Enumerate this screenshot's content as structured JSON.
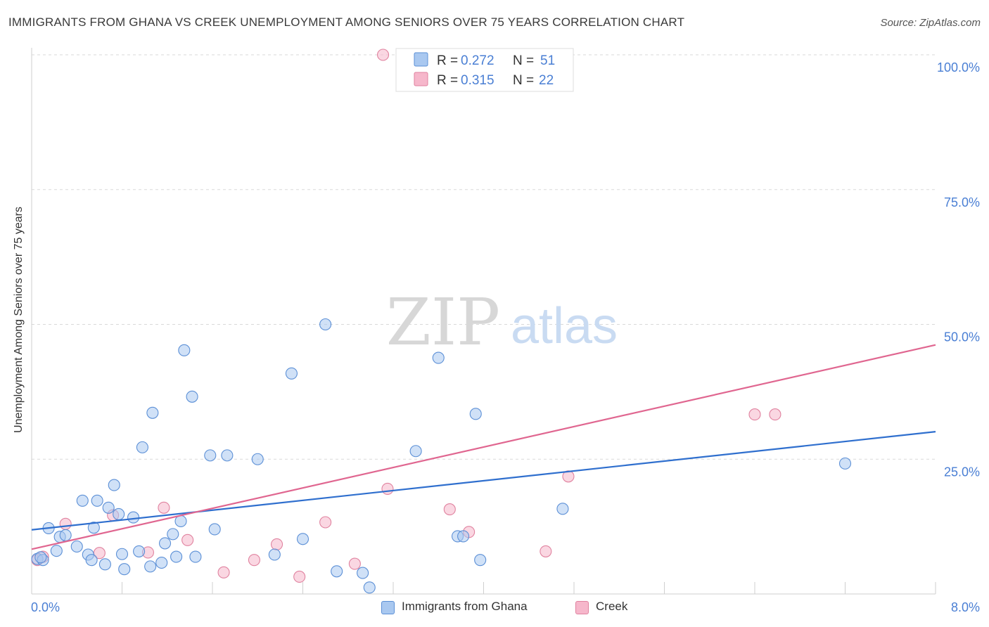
{
  "title": "IMMIGRANTS FROM GHANA VS CREEK UNEMPLOYMENT AMONG SENIORS OVER 75 YEARS CORRELATION CHART",
  "source": "Source: ZipAtlas.com",
  "watermark": {
    "zip": "ZIP",
    "atlas": "atlas"
  },
  "colors": {
    "blue_fill": "#a9c8f0",
    "blue_stroke": "#5b8fd6",
    "blue_line": "#2f6fce",
    "pink_fill": "#f6b7cb",
    "pink_stroke": "#e0829f",
    "pink_line": "#e06690",
    "axis_text": "#4a7fd4",
    "grid": "#d9d9d9"
  },
  "stats_legend": [
    {
      "r_label": "R = ",
      "r_value": "0.272",
      "n_label": "N = ",
      "n_value": "51",
      "series": "blue"
    },
    {
      "r_label": "R = ",
      "r_value": "0.315",
      "n_label": "N = ",
      "n_value": "22",
      "series": "pink"
    }
  ],
  "chart_data": {
    "type": "scatter",
    "title": "IMMIGRANTS FROM GHANA VS CREEK UNEMPLOYMENT AMONG SENIORS OVER 75 YEARS CORRELATION CHART",
    "xlabel": "",
    "ylabel": "Unemployment Among Seniors over 75 years",
    "xlim": [
      0,
      8
    ],
    "ylim": [
      0,
      100
    ],
    "x_tick_labels": [
      {
        "value": 0,
        "label": "0.0%"
      },
      {
        "value": 8,
        "label": "8.0%"
      }
    ],
    "y_tick_labels": [
      {
        "value": 25,
        "label": "25.0%"
      },
      {
        "value": 50,
        "label": "50.0%"
      },
      {
        "value": 75,
        "label": "75.0%"
      },
      {
        "value": 100,
        "label": "100.0%"
      }
    ],
    "y_grid": [
      25,
      50,
      75,
      100
    ],
    "series": [
      {
        "name": "Immigrants from Ghana",
        "color": "blue",
        "trend": {
          "x0": 0,
          "y0": 11.9,
          "x1": 8,
          "y1": 30.1
        },
        "points": [
          [
            0.05,
            6.5
          ],
          [
            0.1,
            6.3
          ],
          [
            0.15,
            12.2
          ],
          [
            0.22,
            8.0
          ],
          [
            0.25,
            10.6
          ],
          [
            0.3,
            10.9
          ],
          [
            0.4,
            8.8
          ],
          [
            0.45,
            17.3
          ],
          [
            0.5,
            7.3
          ],
          [
            0.53,
            6.3
          ],
          [
            0.55,
            12.3
          ],
          [
            0.58,
            17.3
          ],
          [
            0.65,
            5.5
          ],
          [
            0.68,
            16.0
          ],
          [
            0.73,
            20.2
          ],
          [
            0.77,
            14.8
          ],
          [
            0.8,
            7.4
          ],
          [
            0.82,
            4.6
          ],
          [
            0.9,
            14.2
          ],
          [
            0.95,
            7.9
          ],
          [
            0.98,
            27.2
          ],
          [
            1.05,
            5.1
          ],
          [
            1.07,
            33.6
          ],
          [
            1.15,
            5.8
          ],
          [
            1.18,
            9.4
          ],
          [
            1.25,
            11.1
          ],
          [
            1.28,
            6.9
          ],
          [
            1.32,
            13.5
          ],
          [
            1.35,
            45.2
          ],
          [
            1.42,
            36.6
          ],
          [
            1.45,
            6.9
          ],
          [
            1.58,
            25.7
          ],
          [
            1.62,
            12.0
          ],
          [
            1.73,
            25.7
          ],
          [
            2.0,
            25.0
          ],
          [
            2.15,
            7.3
          ],
          [
            2.3,
            40.9
          ],
          [
            2.4,
            10.2
          ],
          [
            2.6,
            50.0
          ],
          [
            2.7,
            4.2
          ],
          [
            2.93,
            3.9
          ],
          [
            2.99,
            1.2
          ],
          [
            3.4,
            26.5
          ],
          [
            3.6,
            43.8
          ],
          [
            3.77,
            10.7
          ],
          [
            3.82,
            10.7
          ],
          [
            3.93,
            33.4
          ],
          [
            3.97,
            6.3
          ],
          [
            4.7,
            15.8
          ],
          [
            7.2,
            24.2
          ],
          [
            0.08,
            6.8
          ]
        ]
      },
      {
        "name": "Creek",
        "color": "pink",
        "trend": {
          "x0": 0,
          "y0": 8.3,
          "x1": 8,
          "y1": 46.2
        },
        "points": [
          [
            0.05,
            6.3
          ],
          [
            0.1,
            6.9
          ],
          [
            0.3,
            13.0
          ],
          [
            0.6,
            7.6
          ],
          [
            0.72,
            14.6
          ],
          [
            1.03,
            7.7
          ],
          [
            1.17,
            16.0
          ],
          [
            1.38,
            10.0
          ],
          [
            1.7,
            4.0
          ],
          [
            1.97,
            6.3
          ],
          [
            2.17,
            9.2
          ],
          [
            2.37,
            3.2
          ],
          [
            2.6,
            13.3
          ],
          [
            2.86,
            5.6
          ],
          [
            3.15,
            19.5
          ],
          [
            3.11,
            100.0
          ],
          [
            3.7,
            15.7
          ],
          [
            3.87,
            11.5
          ],
          [
            4.55,
            7.9
          ],
          [
            4.75,
            21.8
          ],
          [
            6.4,
            33.3
          ],
          [
            6.58,
            33.3
          ]
        ]
      }
    ]
  },
  "bottom_legend": [
    {
      "label": "Immigrants from Ghana",
      "series": "blue"
    },
    {
      "label": "Creek",
      "series": "pink"
    }
  ]
}
